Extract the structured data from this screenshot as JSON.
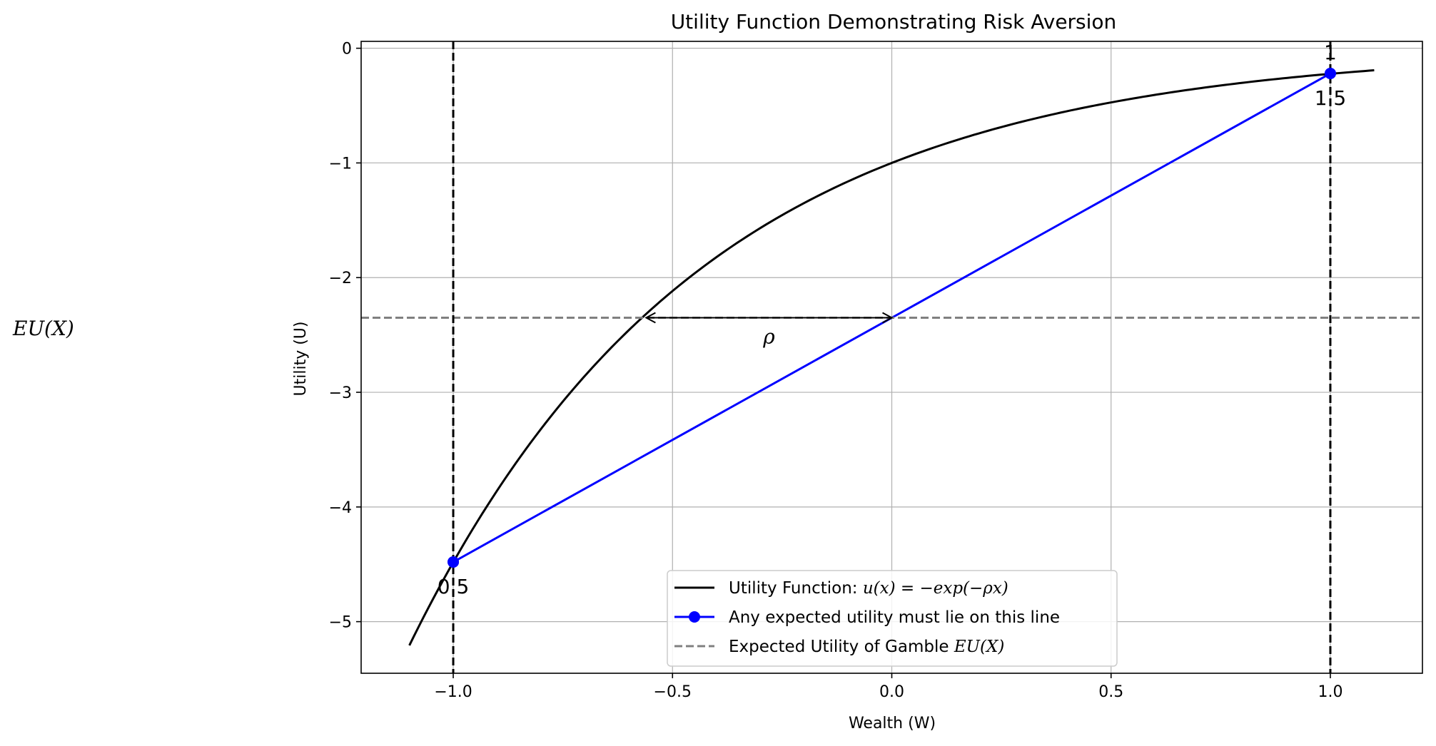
{
  "chart_data": {
    "type": "line",
    "title": "Utility Function Demonstrating Risk Aversion",
    "xlabel": "Wealth (W)",
    "ylabel": "Utility (U)",
    "xlim": [
      -1.21,
      1.21
    ],
    "ylim": [
      -5.45,
      0.06
    ],
    "xticks": [
      -1.0,
      -0.5,
      0.0,
      0.5,
      1.0
    ],
    "xtick_labels": [
      "−1.0",
      "−0.5",
      "0.0",
      "0.5",
      "1.0"
    ],
    "yticks": [
      0,
      -1,
      -2,
      -3,
      -4,
      -5
    ],
    "ytick_labels": [
      "0",
      "−1",
      "−2",
      "−3",
      "−4",
      "−5"
    ],
    "grid": true,
    "legend_position": "bottom-center",
    "rho": 1.5,
    "series": [
      {
        "name": "Utility Function: u(x) = −exp(−ρx)",
        "name_parts": {
          "prefix": "Utility Function: ",
          "math": "u(x) = −exp(−ρx)"
        },
        "type": "curve",
        "x_range": [
          -1.1,
          1.1
        ],
        "color": "#000000",
        "style": "solid"
      },
      {
        "name": "Any expected utility must lie on this line",
        "type": "line-with-markers",
        "x": [
          -1.0,
          1.0
        ],
        "y": [
          -4.48,
          -0.22
        ],
        "color": "#0000ff",
        "style": "solid"
      },
      {
        "name": "Expected Utility of Gamble EU(X)",
        "name_parts": {
          "prefix": "Expected Utility of Gamble ",
          "math": "EU(X)"
        },
        "type": "hline",
        "y": -2.35,
        "color": "#808080",
        "style": "dashed"
      }
    ],
    "vlines": [
      {
        "x": -1.0,
        "color": "#000000",
        "style": "dashed"
      },
      {
        "x": 1.0,
        "color": "#000000",
        "style": "dashed"
      }
    ],
    "arrow": {
      "x_start": -0.56,
      "x_end": 0.0,
      "y": -2.35,
      "label": "ρ",
      "label_x": -0.28,
      "label_y": -2.5
    },
    "point_annotations": [
      {
        "x": -1.0,
        "y": -4.48,
        "text": "0.5",
        "position": "below"
      },
      {
        "x": 1.0,
        "y": -0.22,
        "text": "1.5",
        "position": "below"
      },
      {
        "x": 1.0,
        "y": -0.22,
        "text": "1",
        "position": "above"
      }
    ],
    "side_label": "EU(X)"
  }
}
